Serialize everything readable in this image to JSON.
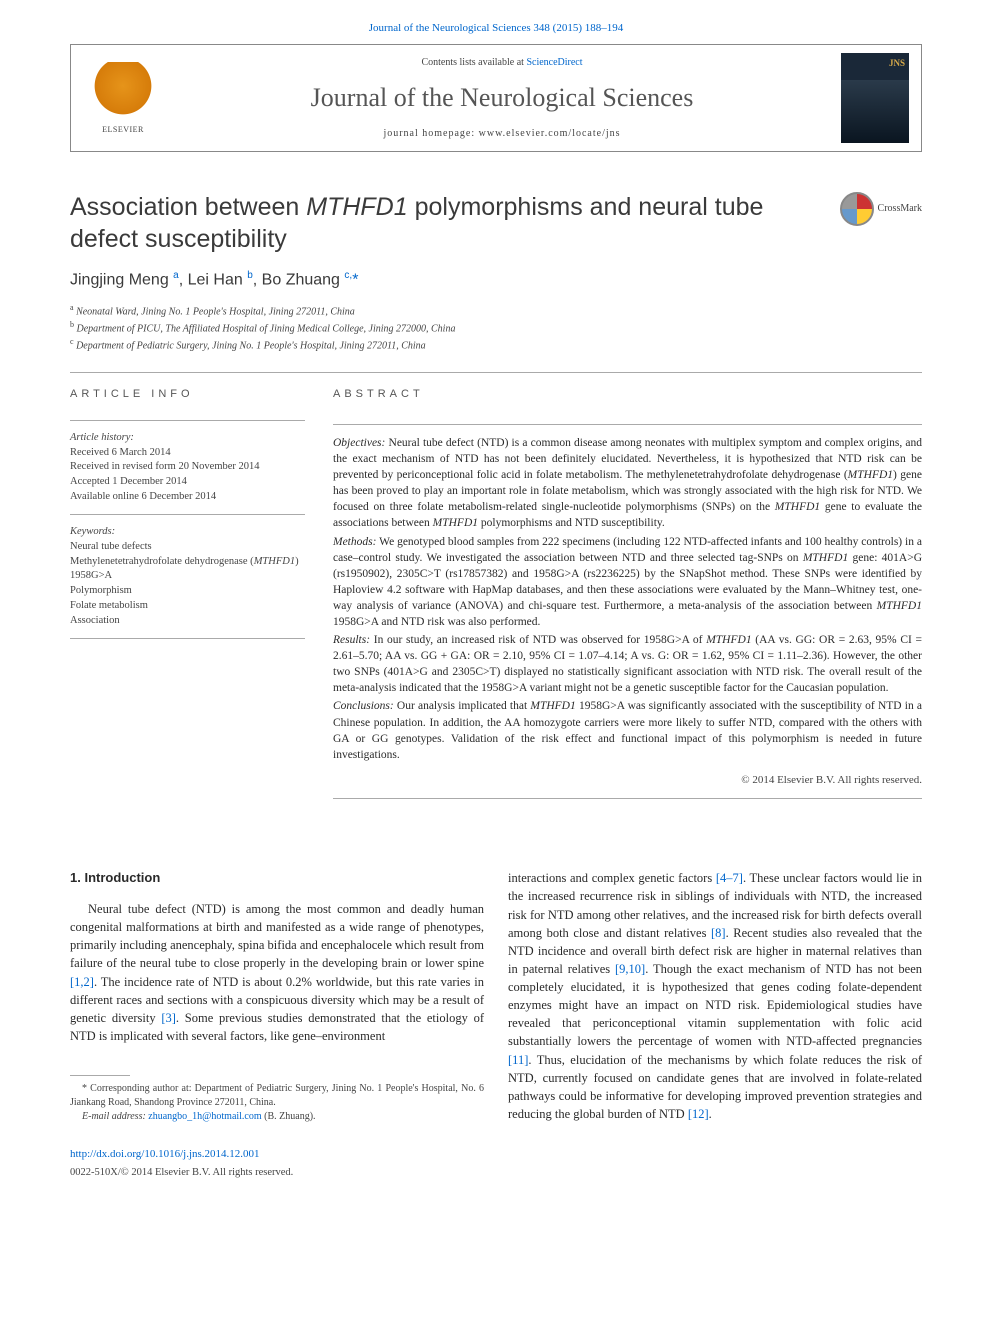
{
  "pager": "Journal of the Neurological Sciences 348 (2015) 188–194",
  "elsevier_label": "ELSEVIER",
  "header": {
    "contents_prefix": "Contents lists available at ",
    "contents_link": "ScienceDirect",
    "journal_name": "Journal of the Neurological Sciences",
    "homepage": "journal homepage: www.elsevier.com/locate/jns"
  },
  "crossmark": "CrossMark",
  "title_html": "Association between <em>MTHFD1</em> polymorphisms and neural tube defect susceptibility",
  "authors_html": "Jingjing Meng <sup>a</sup>, Lei Han <sup>b</sup>, Bo Zhuang <sup>c,</sup><span class='ast'>*</span>",
  "affiliations": {
    "a": "Neonatal Ward, Jining No. 1 People's Hospital, Jining 272011, China",
    "b": "Department of PICU, The Affiliated Hospital of Jining Medical College, Jining 272000, China",
    "c": "Department of Pediatric Surgery, Jining No. 1 People's Hospital, Jining 272011, China"
  },
  "info_head": "ARTICLE INFO",
  "abstract_head": "ABSTRACT",
  "history_label": "Article history:",
  "history": {
    "received": "Received 6 March 2014",
    "revised": "Received in revised form 20 November 2014",
    "accepted": "Accepted 1 December 2014",
    "online": "Available online 6 December 2014"
  },
  "keywords_label": "Keywords:",
  "keywords": [
    "Neural tube defects",
    "Methylenetetrahydrofolate dehydrogenase (MTHFD1)",
    "1958G>A",
    "Polymorphism",
    "Folate metabolism",
    "Association"
  ],
  "abstract": {
    "objectives_html": "<em>Objectives:</em> Neural tube defect (NTD) is a common disease among neonates with multiplex symptom and complex origins, and the exact mechanism of NTD has not been definitely elucidated. Nevertheless, it is hypothesized that NTD risk can be prevented by periconceptional folic acid in folate metabolism. The methylenetetrahydrofolate dehydrogenase (<em>MTHFD1</em>) gene has been proved to play an important role in folate metabolism, which was strongly associated with the high risk for NTD. We focused on three folate metabolism-related single-nucleotide polymorphisms (SNPs) on the <em>MTHFD1</em> gene to evaluate the associations between <em>MTHFD1</em> polymorphisms and NTD susceptibility.",
    "methods_html": "<em>Methods:</em> We genotyped blood samples from 222 specimens (including 122 NTD-affected infants and 100 healthy controls) in a case–control study. We investigated the association between NTD and three selected tag-SNPs on <em>MTHFD1</em> gene: 401A>G (rs1950902), 2305C>T (rs17857382) and 1958G>A (rs2236225) by the SNapShot method. These SNPs were identified by Haploview 4.2 software with HapMap databases, and then these associations were evaluated by the Mann–Whitney test, one-way analysis of variance (ANOVA) and chi-square test. Furthermore, a meta-analysis of the association between <em>MTHFD1</em> 1958G>A and NTD risk was also performed.",
    "results_html": "<em>Results:</em> In our study, an increased risk of NTD was observed for 1958G>A of <em>MTHFD1</em> (AA vs. GG: OR = 2.63, 95% CI = 2.61–5.70; AA vs. GG + GA: OR = 2.10, 95% CI = 1.07–4.14; A vs. G: OR = 1.62, 95% CI = 1.11–2.36). However, the other two SNPs (401A>G and 2305C>T) displayed no statistically significant association with NTD risk. The overall result of the meta-analysis indicated that the 1958G>A variant might not be a genetic susceptible factor for the Caucasian population.",
    "conclusions_html": "<em>Conclusions:</em> Our analysis implicated that <em>MTHFD1</em> 1958G>A was significantly associated with the susceptibility of NTD in a Chinese population. In addition, the AA homozygote carriers were more likely to suffer NTD, compared with the others with GA or GG genotypes. Validation of the risk effect and functional impact of this polymorphism is needed in future investigations."
  },
  "copyright": "© 2014 Elsevier B.V. All rights reserved.",
  "section1_head": "1. Introduction",
  "body_left_html": "Neural tube defect (NTD) is among the most common and deadly human congenital malformations at birth and manifested as a wide range of phenotypes, primarily including anencephaly, spina bifida and encephalocele which result from failure of the neural tube to close properly in the developing brain or lower spine <a href='#'>[1,2]</a>. The incidence rate of NTD is about 0.2% worldwide, but this rate varies in different races and sections with a conspicuous diversity which may be a result of genetic diversity <a href='#'>[3]</a>. Some previous studies demonstrated that the etiology of NTD is implicated with several factors, like gene–environment",
  "body_right_html": "interactions and complex genetic factors <a href='#'>[4–7]</a>. These unclear factors would lie in the increased recurrence risk in siblings of individuals with NTD, the increased risk for NTD among other relatives, and the increased risk for birth defects overall among both close and distant relatives <a href='#'>[8]</a>. Recent studies also revealed that the NTD incidence and overall birth defect risk are higher in maternal relatives than in paternal relatives <a href='#'>[9,10]</a>. Though the exact mechanism of NTD has not been completely elucidated, it is hypothesized that genes coding folate-dependent enzymes might have an impact on NTD risk. Epidemiological studies have revealed that periconceptional vitamin supplementation with folic acid substantially lowers the percentage of women with NTD-affected pregnancies <a href='#'>[11]</a>. Thus, elucidation of the mechanisms by which folate reduces the risk of NTD, currently focused on candidate genes that are involved in folate-related pathways could be informative for developing improved prevention strategies and reducing the global burden of NTD <a href='#'>[12]</a>.",
  "footnotes": {
    "corr": "* Corresponding author at: Department of Pediatric Surgery, Jining No. 1 People's Hospital, No. 6 Jiankang Road, Shandong Province 272011, China.",
    "email_label": "E-mail address:",
    "email": "zhuangbo_1h@hotmail.com",
    "email_suffix": "(B. Zhuang)."
  },
  "footer": {
    "doi": "http://dx.doi.org/10.1016/j.jns.2014.12.001",
    "issn": "0022-510X/© 2014 Elsevier B.V. All rights reserved."
  },
  "colors": {
    "link": "#0066cc",
    "text": "#2a2a2a",
    "muted": "#444444",
    "rule": "#aaaaaa",
    "elsevier_orange": "#e6941a"
  }
}
